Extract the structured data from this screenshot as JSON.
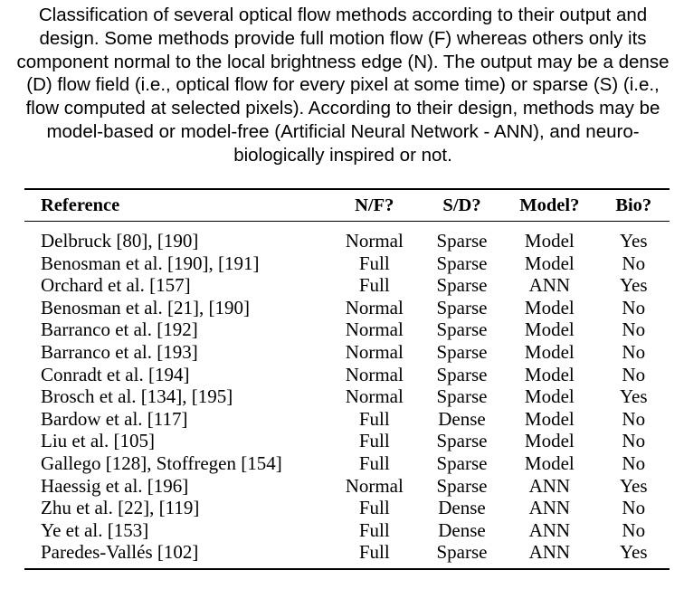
{
  "caption": "Classification of several optical flow methods according to their output and design. Some methods provide full motion flow (F) whereas others only its component normal to the local brightness edge (N). The output may be a dense (D) flow field (i.e., optical flow for every pixel at some time) or sparse (S) (i.e., flow computed at selected pixels). According to their design, methods may be model-based or model-free (Artificial Neural Network - ANN), and neuro-biologically inspired or not.",
  "table": {
    "headers": {
      "reference": "Reference",
      "nf": "N/F?",
      "sd": "S/D?",
      "model": "Model?",
      "bio": "Bio?"
    },
    "rows": [
      {
        "reference": "Delbruck [80], [190]",
        "nf": "Normal",
        "sd": "Sparse",
        "model": "Model",
        "bio": "Yes"
      },
      {
        "reference": "Benosman et al. [190], [191]",
        "nf": "Full",
        "sd": "Sparse",
        "model": "Model",
        "bio": "No"
      },
      {
        "reference": "Orchard et al. [157]",
        "nf": "Full",
        "sd": "Sparse",
        "model": "ANN",
        "bio": "Yes"
      },
      {
        "reference": "Benosman et al. [21], [190]",
        "nf": "Normal",
        "sd": "Sparse",
        "model": "Model",
        "bio": "No"
      },
      {
        "reference": "Barranco et al. [192]",
        "nf": "Normal",
        "sd": "Sparse",
        "model": "Model",
        "bio": "No"
      },
      {
        "reference": "Barranco et al. [193]",
        "nf": "Normal",
        "sd": "Sparse",
        "model": "Model",
        "bio": "No"
      },
      {
        "reference": "Conradt et al. [194]",
        "nf": "Normal",
        "sd": "Sparse",
        "model": "Model",
        "bio": "No"
      },
      {
        "reference": "Brosch et al. [134], [195]",
        "nf": "Normal",
        "sd": "Sparse",
        "model": "Model",
        "bio": "Yes"
      },
      {
        "reference": "Bardow et al. [117]",
        "nf": "Full",
        "sd": "Dense",
        "model": "Model",
        "bio": "No"
      },
      {
        "reference": "Liu et al. [105]",
        "nf": "Full",
        "sd": "Sparse",
        "model": "Model",
        "bio": "No"
      },
      {
        "reference": "Gallego [128], Stoffregen [154]",
        "nf": "Full",
        "sd": "Sparse",
        "model": "Model",
        "bio": "No"
      },
      {
        "reference": "Haessig et al. [196]",
        "nf": "Normal",
        "sd": "Sparse",
        "model": "ANN",
        "bio": "Yes"
      },
      {
        "reference": "Zhu et al. [22], [119]",
        "nf": "Full",
        "sd": "Dense",
        "model": "ANN",
        "bio": "No"
      },
      {
        "reference": "Ye et al. [153]",
        "nf": "Full",
        "sd": "Dense",
        "model": "ANN",
        "bio": "No"
      },
      {
        "reference": "Paredes-Vallés [102]",
        "nf": "Full",
        "sd": "Sparse",
        "model": "ANN",
        "bio": "Yes"
      }
    ]
  }
}
